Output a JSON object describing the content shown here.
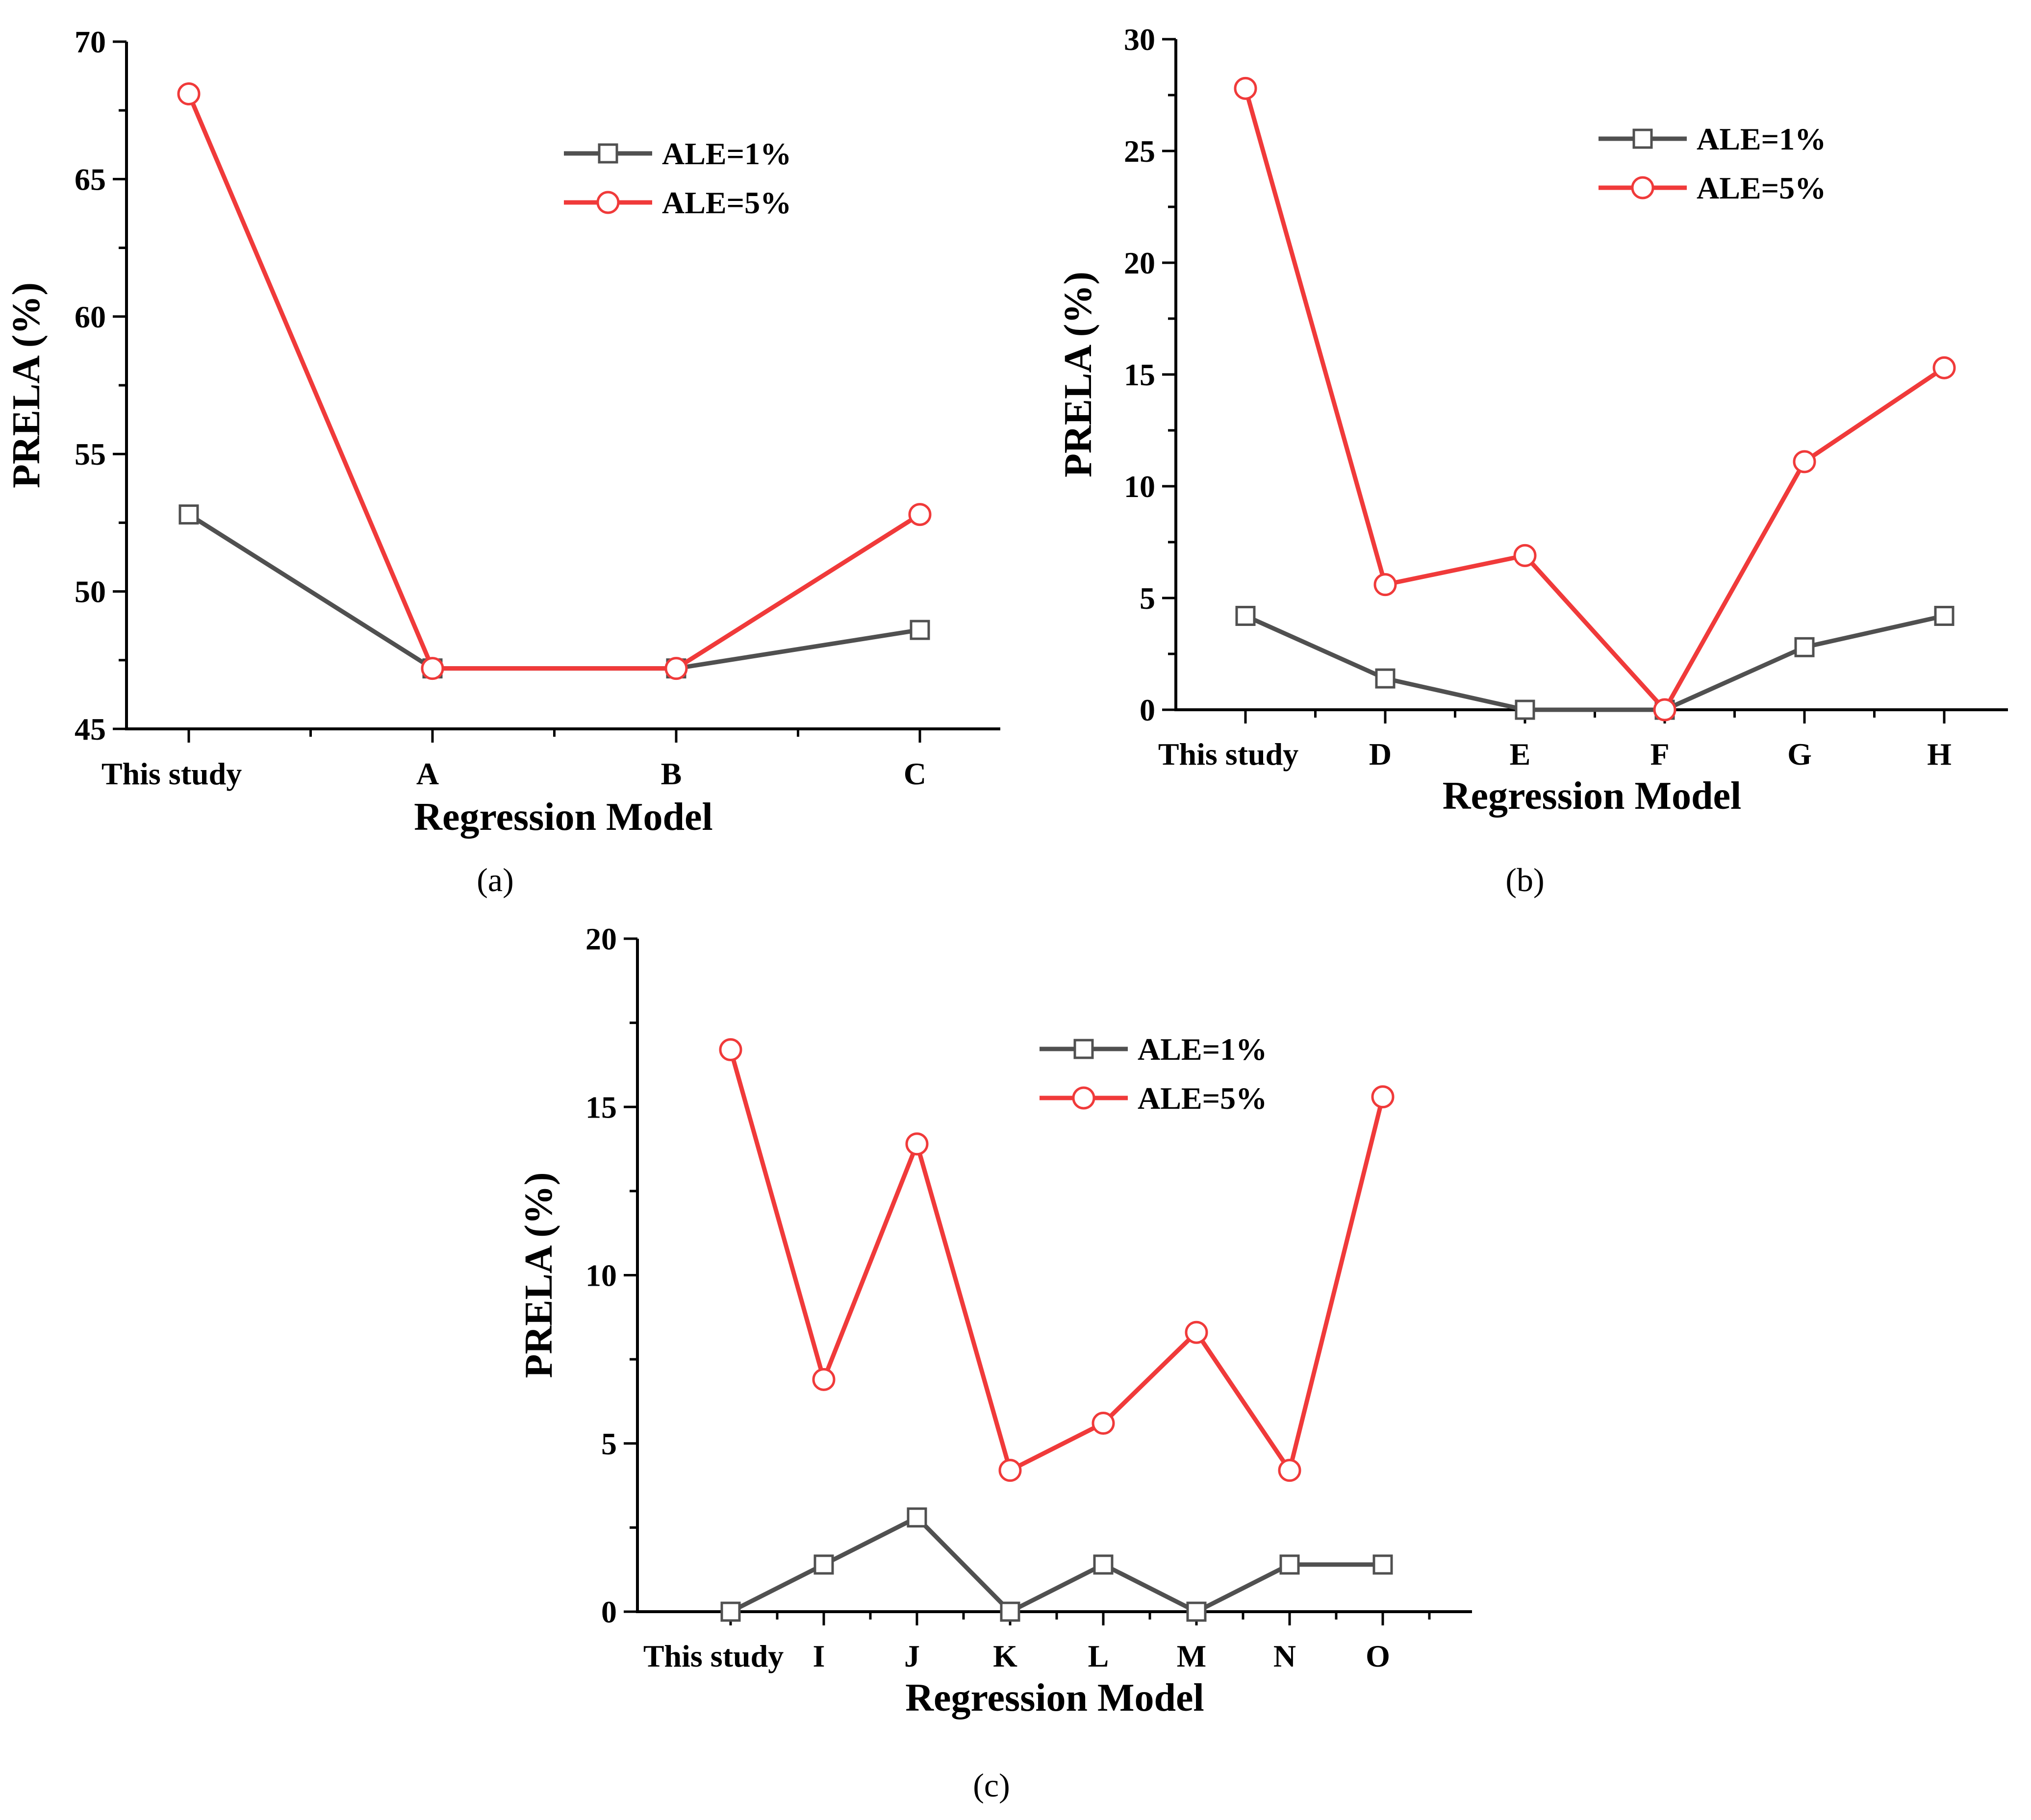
{
  "chart_data": [
    {
      "type": "line",
      "panel_label": "(a)",
      "categories": [
        "This study",
        "A",
        "B",
        "C"
      ],
      "xlabel": "Regression Model",
      "ylabel": "PRELA (%)",
      "ylim": [
        45,
        70
      ],
      "yticks": [
        45,
        50,
        55,
        60,
        65,
        70
      ],
      "grid": false,
      "legend_position": "top-right",
      "series": [
        {
          "name": "ALE=1%",
          "color": "#505050",
          "marker": "square",
          "values": [
            52.8,
            47.2,
            47.2,
            48.6
          ]
        },
        {
          "name": "ALE=5%",
          "color": "#f03a3a",
          "marker": "circle",
          "values": [
            68.1,
            47.2,
            47.2,
            52.8
          ]
        }
      ]
    },
    {
      "type": "line",
      "panel_label": "(b)",
      "categories": [
        "This study",
        "D",
        "E",
        "F",
        "G",
        "H"
      ],
      "xlabel": "Regression Model",
      "ylabel": "PRELA (%)",
      "ylim": [
        0,
        30
      ],
      "yticks": [
        0,
        5,
        10,
        15,
        20,
        25,
        30
      ],
      "grid": false,
      "legend_position": "top-right",
      "series": [
        {
          "name": "ALE=1%",
          "color": "#505050",
          "marker": "square",
          "values": [
            4.2,
            1.4,
            0,
            0,
            2.8,
            4.2
          ]
        },
        {
          "name": "ALE=5%",
          "color": "#f03a3a",
          "marker": "circle",
          "values": [
            27.8,
            5.6,
            6.9,
            0,
            11.1,
            15.3
          ]
        }
      ]
    },
    {
      "type": "line",
      "panel_label": "(c)",
      "categories": [
        "This study",
        "I",
        "J",
        "K",
        "L",
        "M",
        "N",
        "O"
      ],
      "xlabel": "Regression Model",
      "ylabel": "PRELA (%)",
      "ylim": [
        0,
        20
      ],
      "yticks": [
        0,
        5,
        10,
        15,
        20
      ],
      "grid": false,
      "legend_position": "top-center",
      "series": [
        {
          "name": "ALE=1%",
          "color": "#505050",
          "marker": "square",
          "values": [
            0,
            1.4,
            2.8,
            0,
            1.4,
            0,
            1.4,
            1.4
          ]
        },
        {
          "name": "ALE=5%",
          "color": "#f03a3a",
          "marker": "circle",
          "values": [
            16.7,
            6.9,
            13.9,
            4.2,
            5.6,
            8.3,
            4.2,
            15.3
          ]
        }
      ]
    }
  ]
}
